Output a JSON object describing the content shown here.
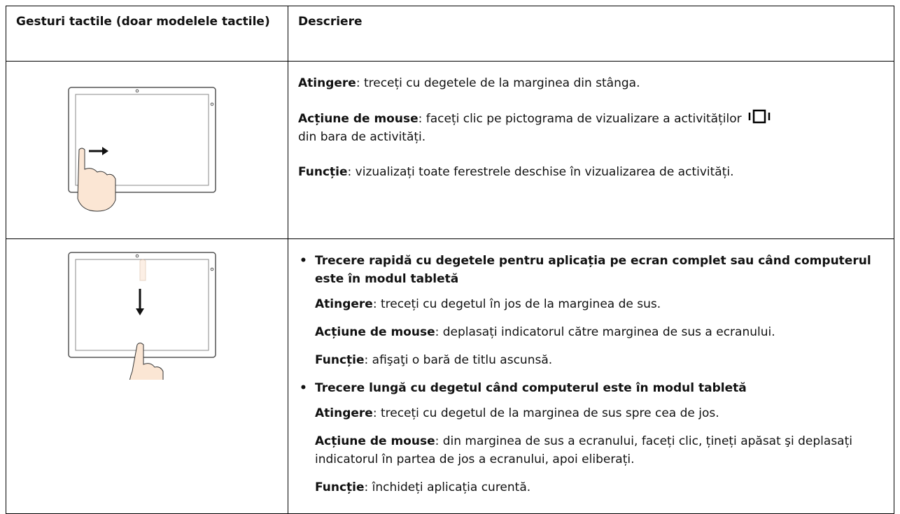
{
  "header": {
    "col1": "Gesturi tactile (doar modelele tactile)",
    "col2": "Descriere"
  },
  "rows": [
    {
      "items": [
        {
          "label": "Atingere",
          "text": ": treceți cu degetele de la marginea din stânga."
        },
        {
          "label": "Acțiune de mouse",
          "text": ": faceți clic pe pictograma de vizualizare a activităților",
          "text_after": "din bara de activități."
        },
        {
          "label": "Funcție",
          "text": ": vizualizați toate ferestrele deschise în vizualizarea de activități."
        }
      ]
    },
    {
      "bullets": [
        {
          "heading": "Trecere rapidă cu degetele pentru aplicația pe ecran complet sau când computerul este în modul tabletă",
          "items": [
            {
              "label": "Atingere",
              "text": ": treceți cu degetul în jos de la marginea de sus."
            },
            {
              "label": "Acțiune de mouse",
              "text": ": deplasați indicatorul către marginea de sus a ecranului."
            },
            {
              "label": "Funcție",
              "text": ": afişaţi o bară de titlu ascunsă."
            }
          ]
        },
        {
          "heading": "Trecere lungă cu degetul când computerul este în modul tabletă",
          "items": [
            {
              "label": "Atingere",
              "text": ": treceți cu degetul de la marginea de sus spre cea de jos."
            },
            {
              "label": "Acțiune de mouse",
              "text": ": din marginea de sus a ecranului, faceți clic, țineți apăsat şi deplasați indicatorul în partea de jos a ecranului, apoi eliberați."
            },
            {
              "label": "Funcție",
              "text": ": închideți aplicația curentă."
            }
          ]
        }
      ]
    }
  ]
}
